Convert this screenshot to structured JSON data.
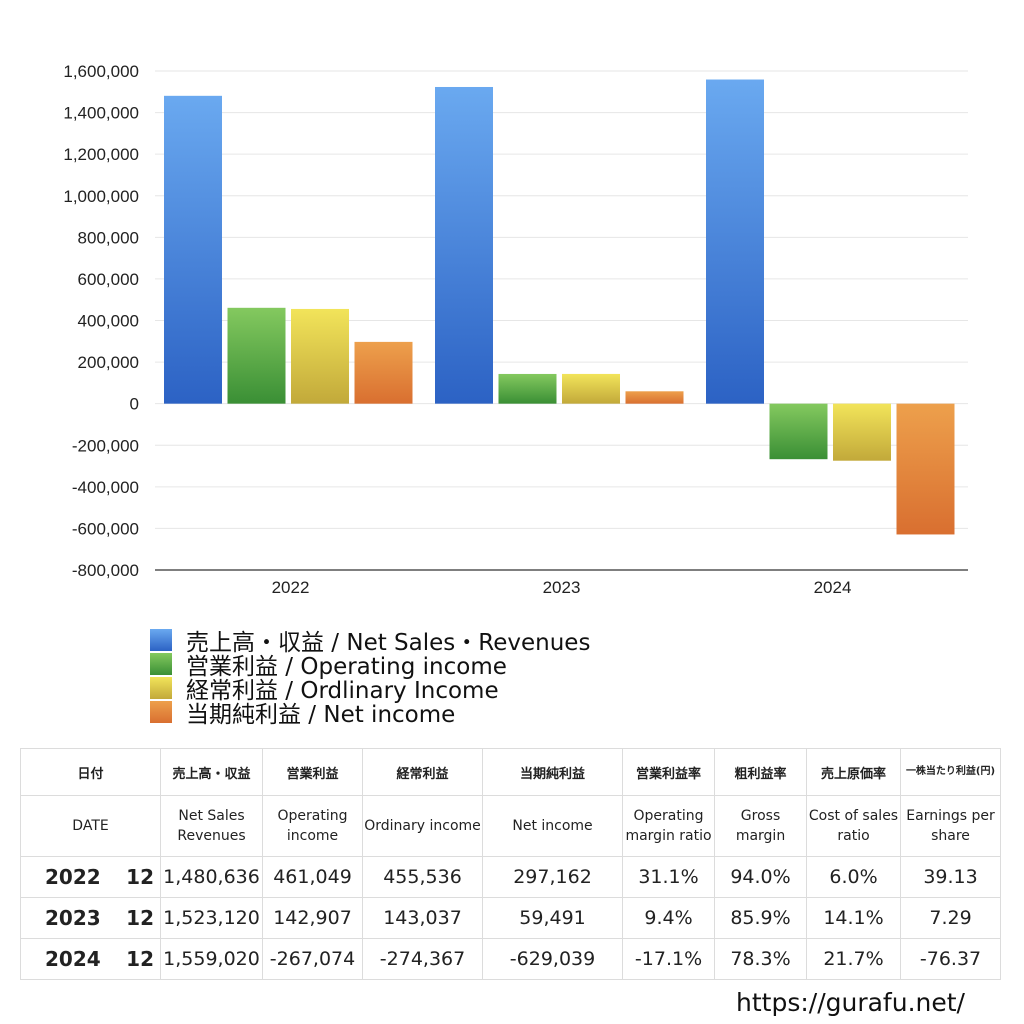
{
  "chart_data": {
    "type": "bar",
    "categories": [
      "2022",
      "2023",
      "2024"
    ],
    "ylim": [
      -800000,
      1600000
    ],
    "yticks": [
      1600000,
      1400000,
      1200000,
      1000000,
      800000,
      600000,
      400000,
      200000,
      0,
      -200000,
      -400000,
      -600000,
      -800000
    ],
    "ytick_labels": [
      "1,600,000",
      "1,400,000",
      "1,200,000",
      "1,000,000",
      "800,000",
      "600,000",
      "400,000",
      "200,000",
      "0",
      "-200,000",
      "-400,000",
      "-600,000",
      "-800,000"
    ],
    "series": [
      {
        "name": "売上高・収益 / Net Sales・Revenues",
        "values": [
          1480636,
          1523120,
          1559020
        ],
        "color_top": "#6aa9f0",
        "color_bottom": "#2c62c4"
      },
      {
        "name": "営業利益 / Operating income",
        "values": [
          461049,
          142907,
          -267074
        ],
        "color_top": "#84c95f",
        "color_bottom": "#3a8f35"
      },
      {
        "name": "経常利益 / Ordlinary Income",
        "values": [
          455536,
          143037,
          -274367
        ],
        "color_top": "#f2e45a",
        "color_bottom": "#c2a93a"
      },
      {
        "name": "当期純利益 / Net income",
        "values": [
          297162,
          59491,
          -629039
        ],
        "color_top": "#eda04c",
        "color_bottom": "#d96f30"
      }
    ]
  },
  "table": {
    "header_jp": [
      "日付",
      "売上高・収益",
      "営業利益",
      "経常利益",
      "当期純利益",
      "営業利益率",
      "粗利益率",
      "売上原価率",
      "一株当たり利益(円)"
    ],
    "header_en": [
      "DATE",
      "Net Sales Revenues",
      "Operating income",
      "Ordinary income",
      "Net income",
      "Operating margin ratio",
      "Gross margin",
      "Cost of sales ratio",
      "Earnings per share"
    ],
    "rows": [
      {
        "year": "2022",
        "month": "12",
        "cells": [
          "1,480,636",
          "461,049",
          "455,536",
          "297,162",
          "31.1%",
          "94.0%",
          "6.0%",
          "39.13"
        ]
      },
      {
        "year": "2023",
        "month": "12",
        "cells": [
          "1,523,120",
          "142,907",
          "143,037",
          "59,491",
          "9.4%",
          "85.9%",
          "14.1%",
          "7.29"
        ]
      },
      {
        "year": "2024",
        "month": "12",
        "cells": [
          "1,559,020",
          "-267,074",
          "-274,367",
          "-629,039",
          "-17.1%",
          "78.3%",
          "21.7%",
          "-76.37"
        ]
      }
    ]
  },
  "footer": {
    "url": "https://gurafu.net/"
  },
  "colors": {
    "negative": "#d9503a",
    "grid": "#e6e6e6"
  }
}
